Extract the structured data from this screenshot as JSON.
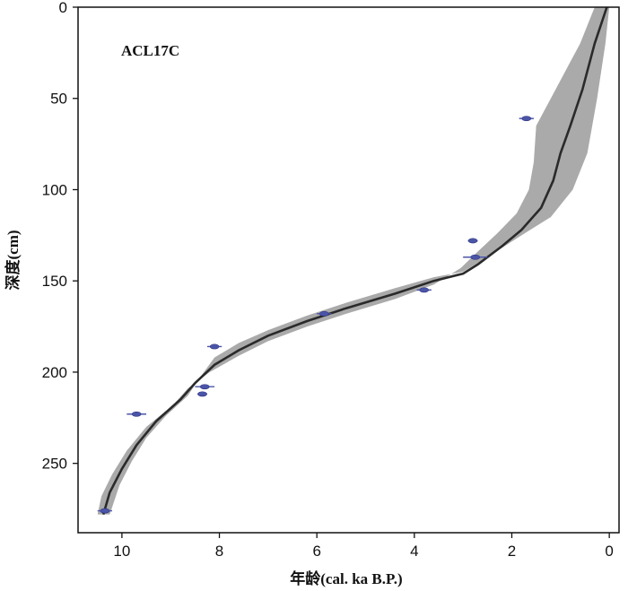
{
  "chart_data": {
    "type": "line",
    "title": "ACL17C",
    "xlabel": "年龄(cal. ka B.P.)",
    "ylabel": "深度(cm)",
    "xlim": [
      10.9,
      -0.2
    ],
    "ylim": [
      0,
      288
    ],
    "x_reversed": true,
    "y_reversed": true,
    "x_ticks": [
      10,
      8,
      6,
      4,
      2,
      0
    ],
    "y_ticks": [
      0,
      50,
      100,
      150,
      200,
      250
    ],
    "grid": false,
    "series": [
      {
        "role": "median-age-depth-model",
        "color": "#2a2a2a",
        "points": [
          [
            0.05,
            0
          ],
          [
            0.3,
            20
          ],
          [
            0.55,
            45
          ],
          [
            0.8,
            65
          ],
          [
            1.0,
            80
          ],
          [
            1.15,
            95
          ],
          [
            1.4,
            110
          ],
          [
            1.8,
            122
          ],
          [
            2.2,
            131
          ],
          [
            2.7,
            141
          ],
          [
            3.0,
            146
          ],
          [
            3.6,
            150
          ],
          [
            4.4,
            157
          ],
          [
            5.4,
            165
          ],
          [
            6.2,
            172
          ],
          [
            7.0,
            180
          ],
          [
            7.6,
            188
          ],
          [
            8.1,
            196
          ],
          [
            8.5,
            206
          ],
          [
            8.8,
            215
          ],
          [
            9.3,
            227
          ],
          [
            9.7,
            240
          ],
          [
            10.0,
            253
          ],
          [
            10.25,
            266
          ],
          [
            10.38,
            278
          ]
        ]
      },
      {
        "role": "confidence-envelope",
        "color": "#aaaaaa",
        "upper": [
          [
            0.0,
            0
          ],
          [
            0.08,
            20
          ],
          [
            0.25,
            50
          ],
          [
            0.45,
            80
          ],
          [
            0.75,
            100
          ],
          [
            1.2,
            115
          ],
          [
            1.8,
            125
          ],
          [
            2.5,
            137
          ],
          [
            3.0,
            145
          ],
          [
            3.6,
            148
          ],
          [
            4.4,
            154
          ],
          [
            5.4,
            162
          ],
          [
            6.2,
            169
          ],
          [
            7.0,
            177
          ],
          [
            7.6,
            184
          ],
          [
            8.1,
            192
          ],
          [
            8.4,
            203
          ],
          [
            8.65,
            213
          ],
          [
            9.1,
            224
          ],
          [
            9.5,
            236
          ],
          [
            9.8,
            249
          ],
          [
            10.05,
            262
          ],
          [
            10.25,
            278
          ]
        ],
        "lower": [
          [
            0.3,
            0
          ],
          [
            0.6,
            20
          ],
          [
            1.1,
            45
          ],
          [
            1.5,
            65
          ],
          [
            1.55,
            85
          ],
          [
            1.65,
            100
          ],
          [
            1.9,
            113
          ],
          [
            2.3,
            124
          ],
          [
            2.7,
            134
          ],
          [
            3.05,
            143
          ],
          [
            3.6,
            152
          ],
          [
            4.4,
            160
          ],
          [
            5.4,
            168
          ],
          [
            6.2,
            175
          ],
          [
            7.0,
            183
          ],
          [
            7.6,
            191
          ],
          [
            8.2,
            200
          ],
          [
            8.65,
            209
          ],
          [
            8.95,
            218
          ],
          [
            9.5,
            230
          ],
          [
            9.9,
            243
          ],
          [
            10.2,
            256
          ],
          [
            10.42,
            268
          ],
          [
            10.5,
            278
          ]
        ]
      }
    ],
    "dated_samples": {
      "color": "#4b55a8",
      "points": [
        {
          "age": 1.7,
          "depth": 61,
          "err": 0.15
        },
        {
          "age": 2.8,
          "depth": 128,
          "err": 0.1
        },
        {
          "age": 2.75,
          "depth": 137,
          "err": 0.25
        },
        {
          "age": 3.8,
          "depth": 155,
          "err": 0.15
        },
        {
          "age": 5.85,
          "depth": 168,
          "err": 0.15
        },
        {
          "age": 8.1,
          "depth": 186,
          "err": 0.15
        },
        {
          "age": 8.3,
          "depth": 208,
          "err": 0.2
        },
        {
          "age": 8.35,
          "depth": 212,
          "err": 0.1
        },
        {
          "age": 9.7,
          "depth": 223,
          "err": 0.2
        },
        {
          "age": 10.35,
          "depth": 276,
          "err": 0.15
        }
      ]
    }
  }
}
